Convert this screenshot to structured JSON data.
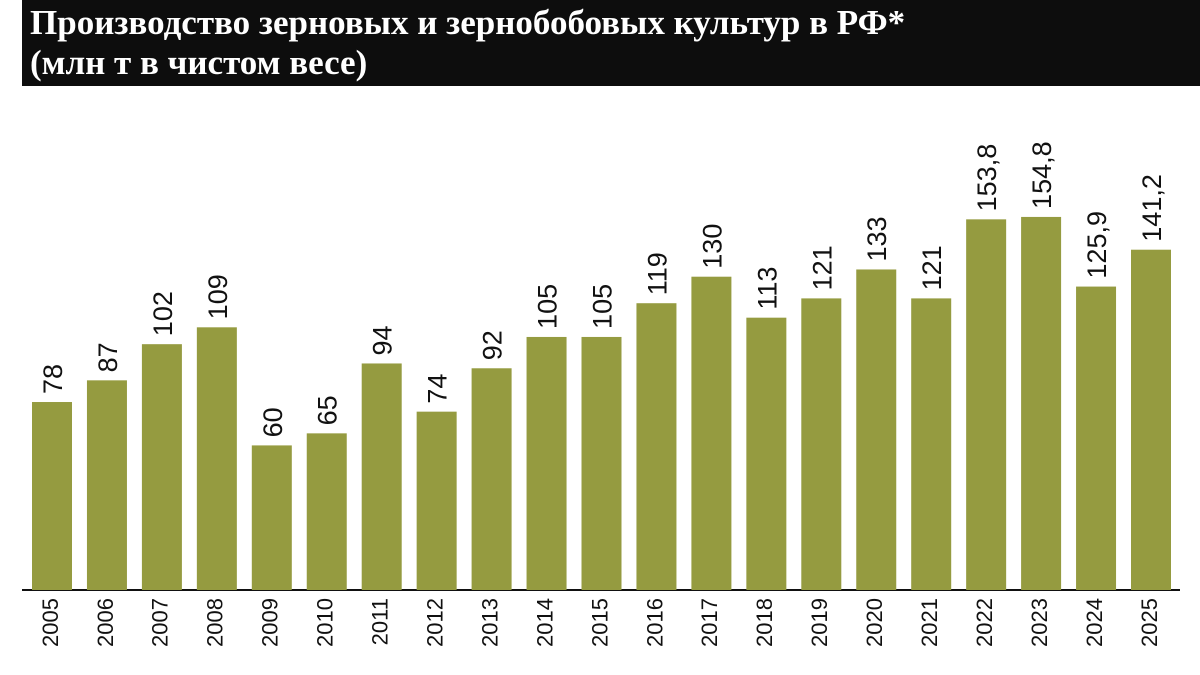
{
  "chart_data": {
    "type": "bar",
    "title": "Производство зерновых и зернобобовых культур в РФ*",
    "subtitle": "(млн т в чистом весе)",
    "categories": [
      "2005",
      "2006",
      "2007",
      "2008",
      "2009",
      "2010",
      "2011",
      "2012",
      "2013",
      "2014",
      "2015",
      "2016",
      "2017",
      "2018",
      "2019",
      "2020",
      "2021",
      "2022",
      "2023",
      "2024",
      "2025"
    ],
    "values": [
      78,
      87,
      102,
      109,
      60,
      65,
      94,
      74,
      92,
      105,
      105,
      119,
      130,
      113,
      121,
      133,
      121,
      153.8,
      154.8,
      125.9,
      141.2
    ],
    "value_labels": [
      "78",
      "87",
      "102",
      "109",
      "60",
      "65",
      "94",
      "74",
      "92",
      "105",
      "105",
      "119",
      "130",
      "113",
      "121",
      "133",
      "121",
      "153,8",
      "154,8",
      "125,9",
      "141,2"
    ],
    "color": "#959b40"
  }
}
